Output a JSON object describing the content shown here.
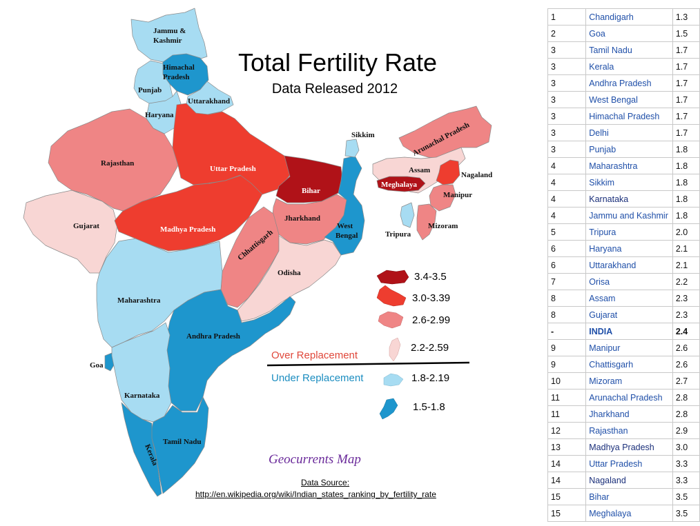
{
  "title": "Total Fertility Rate",
  "subtitle": "Data Released 2012",
  "colors": {
    "tfr_3_4_3_5": "#b01218",
    "tfr_3_0_3_39": "#ee3d2f",
    "tfr_2_6_2_99": "#ef8585",
    "tfr_2_2_2_59": "#f8d6d4",
    "tfr_1_8_2_19": "#a7dcf2",
    "tfr_1_5_1_8": "#1e96cd"
  },
  "map": {
    "labels": {
      "jammu_kashmir_1": "Jammu &",
      "jammu_kashmir_2": "Kashmir",
      "himachal_1": "Himachal",
      "himachal_2": "Pradesh",
      "punjab": "Punjab",
      "uttarakhand": "Uttarakhand",
      "haryana": "Haryana",
      "rajasthan": "Rajasthan",
      "uttar_pradesh": "Uttar Pradesh",
      "bihar": "Bihar",
      "sikkim": "Sikkim",
      "arunachal": "Arunachal Pradesh",
      "assam": "Assam",
      "nagaland": "Nagaland",
      "meghalaya": "Meghalaya",
      "manipur": "Manipur",
      "gujarat": "Gujarat",
      "madhya_pradesh": "Madhya Pradesh",
      "jharkhand": "Jharkhand",
      "west_bengal_1": "West",
      "west_bengal_2": "Bengal",
      "tripura": "Tripura",
      "mizoram": "Mizoram",
      "chhattisgarh": "Chhattisgarh",
      "odisha": "Odisha",
      "maharashtra": "Maharashtra",
      "andhra_pradesh": "Andhra Pradesh",
      "goa": "Goa",
      "karnataka": "Karnataka",
      "tamil_nadu": "Tamil Nadu",
      "kerala": "Kerala"
    }
  },
  "legend": {
    "items": [
      {
        "label": "3.4-3.5",
        "color": "#b01218"
      },
      {
        "label": "3.0-3.39",
        "color": "#ee3d2f"
      },
      {
        "label": "2.6-2.99",
        "color": "#ef8585"
      },
      {
        "label": "2.2-2.59",
        "color": "#f8d6d4"
      },
      {
        "label": "1.8-2.19",
        "color": "#a7dcf2"
      },
      {
        "label": "1.5-1.8",
        "color": "#1e96cd"
      }
    ],
    "over_replacement": "Over Replacement",
    "under_replacement": "Under Replacement"
  },
  "credit": "Geocurrents Map",
  "source": {
    "label": "Data Source:",
    "url": "http://en.wikipedia.org/wiki/Indian_states_ranking_by_fertility_rate"
  },
  "table": {
    "rows": [
      {
        "rank": "1",
        "state": "Chandigarh",
        "tfr": "1.3"
      },
      {
        "rank": "2",
        "state": "Goa",
        "tfr": "1.5"
      },
      {
        "rank": "3",
        "state": "Tamil Nadu",
        "tfr": "1.7"
      },
      {
        "rank": "3",
        "state": "Kerala",
        "tfr": "1.7"
      },
      {
        "rank": "3",
        "state": "Andhra Pradesh",
        "tfr": "1.7"
      },
      {
        "rank": "3",
        "state": "West Bengal",
        "tfr": "1.7"
      },
      {
        "rank": "3",
        "state": "Himachal Pradesh",
        "tfr": "1.7"
      },
      {
        "rank": "3",
        "state": "Delhi",
        "tfr": "1.7"
      },
      {
        "rank": "3",
        "state": "Punjab",
        "tfr": "1.8"
      },
      {
        "rank": "4",
        "state": "Maharashtra",
        "tfr": "1.8"
      },
      {
        "rank": "4",
        "state": "Sikkim",
        "tfr": "1.8"
      },
      {
        "rank": "4",
        "state": "Karnataka",
        "tfr": "1.8"
      },
      {
        "rank": "4",
        "state": "Jammu and Kashmir",
        "tfr": "1.8"
      },
      {
        "rank": "5",
        "state": "Tripura",
        "tfr": "2.0"
      },
      {
        "rank": "6",
        "state": "Haryana",
        "tfr": "2.1"
      },
      {
        "rank": "6",
        "state": "Uttarakhand",
        "tfr": "2.1"
      },
      {
        "rank": "7",
        "state": "Orisa",
        "tfr": "2.2"
      },
      {
        "rank": "8",
        "state": "Assam",
        "tfr": "2.3"
      },
      {
        "rank": "8",
        "state": "Gujarat",
        "tfr": "2.3"
      },
      {
        "rank": "-",
        "state": "INDIA",
        "tfr": "2.4"
      },
      {
        "rank": "9",
        "state": "Manipur",
        "tfr": "2.6"
      },
      {
        "rank": "9",
        "state": "Chattisgarh",
        "tfr": "2.6"
      },
      {
        "rank": "10",
        "state": "Mizoram",
        "tfr": "2.7"
      },
      {
        "rank": "11",
        "state": "Arunachal Pradesh",
        "tfr": "2.8"
      },
      {
        "rank": "11",
        "state": "Jharkhand",
        "tfr": "2.8"
      },
      {
        "rank": "12",
        "state": "Rajasthan",
        "tfr": "2.9"
      },
      {
        "rank": "13",
        "state": "Madhya Pradesh",
        "tfr": "3.0"
      },
      {
        "rank": "14",
        "state": "Uttar Pradesh",
        "tfr": "3.3"
      },
      {
        "rank": "14",
        "state": "Nagaland",
        "tfr": "3.3"
      },
      {
        "rank": "15",
        "state": "Bihar",
        "tfr": "3.5"
      },
      {
        "rank": "15",
        "state": "Meghalaya",
        "tfr": "3.5"
      }
    ]
  }
}
